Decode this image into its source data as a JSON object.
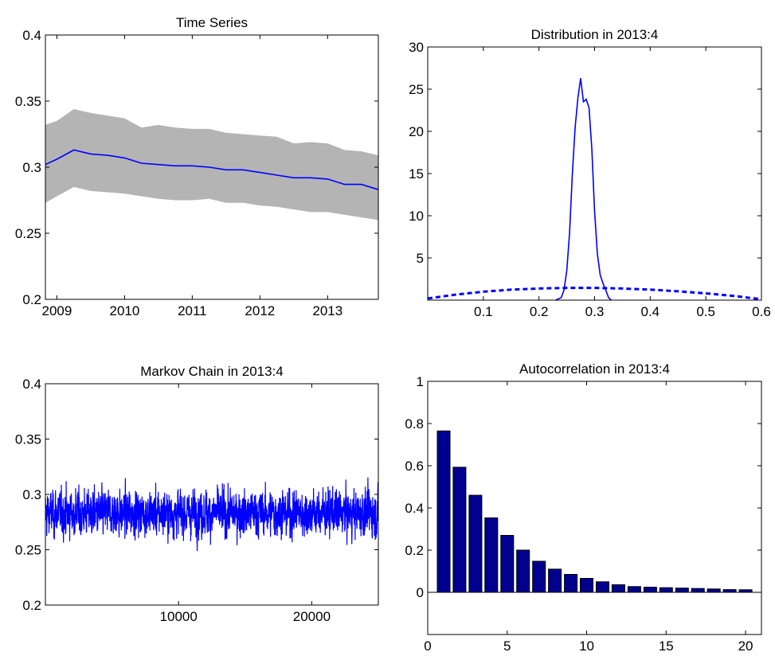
{
  "chart_data": [
    {
      "type": "area",
      "title": "Time Series",
      "xlabel": "",
      "ylabel": "",
      "xlim": [
        2008.83,
        2013.75
      ],
      "ylim": [
        0.2,
        0.4
      ],
      "xticks": [
        2009,
        2010,
        2011,
        2012,
        2013
      ],
      "yticks": [
        0.2,
        0.25,
        0.3,
        0.35,
        0.4
      ],
      "xtick_labels": [
        "2009",
        "2010",
        "2011",
        "2012",
        "2013"
      ],
      "ytick_labels": [
        "0.2",
        "0.25",
        "0.3",
        "0.35",
        "0.4"
      ],
      "x": [
        2008.83,
        2009.0,
        2009.25,
        2009.5,
        2009.75,
        2010.0,
        2010.25,
        2010.5,
        2010.75,
        2011.0,
        2011.25,
        2011.5,
        2011.75,
        2012.0,
        2012.25,
        2012.5,
        2012.75,
        2013.0,
        2013.25,
        2013.5,
        2013.75
      ],
      "series": [
        {
          "values": [
            0.302,
            0.306,
            0.313,
            0.31,
            0.309,
            0.307,
            0.303,
            0.302,
            0.301,
            0.301,
            0.3,
            0.298,
            0.298,
            0.296,
            0.294,
            0.292,
            0.292,
            0.291,
            0.287,
            0.287,
            0.283
          ],
          "color": "#0000ff"
        }
      ],
      "band": {
        "lower": [
          0.273,
          0.278,
          0.285,
          0.282,
          0.281,
          0.28,
          0.278,
          0.276,
          0.275,
          0.275,
          0.276,
          0.273,
          0.273,
          0.271,
          0.27,
          0.268,
          0.266,
          0.266,
          0.264,
          0.262,
          0.26
        ],
        "upper": [
          0.332,
          0.335,
          0.344,
          0.341,
          0.339,
          0.337,
          0.33,
          0.332,
          0.33,
          0.329,
          0.329,
          0.326,
          0.325,
          0.324,
          0.323,
          0.318,
          0.319,
          0.318,
          0.313,
          0.312,
          0.309
        ],
        "color": "#b4b4b4"
      },
      "grid": false
    },
    {
      "type": "line",
      "title": "Distribution in 2013:4",
      "xlabel": "",
      "ylabel": "",
      "xlim": [
        0.0,
        0.6
      ],
      "ylim": [
        0,
        30
      ],
      "xticks": [
        0.1,
        0.2,
        0.3,
        0.4,
        0.5,
        0.6
      ],
      "yticks": [
        5,
        10,
        15,
        20,
        25,
        30
      ],
      "xtick_labels": [
        "0.1",
        "0.2",
        "0.3",
        "0.4",
        "0.5",
        "0.6"
      ],
      "ytick_labels": [
        "5",
        "10",
        "15",
        "20",
        "25",
        "30"
      ],
      "series": [
        {
          "style": "solid",
          "color": "#0000ff",
          "x": [
            0.23,
            0.24,
            0.245,
            0.25,
            0.255,
            0.26,
            0.265,
            0.27,
            0.275,
            0.28,
            0.285,
            0.29,
            0.295,
            0.3,
            0.305,
            0.31,
            0.315,
            0.32,
            0.325,
            0.33
          ],
          "y": [
            0.0,
            0.3,
            1.2,
            3.5,
            8.0,
            15.0,
            20.5,
            24.0,
            26.3,
            23.5,
            23.8,
            22.8,
            18.0,
            10.5,
            5.5,
            3.0,
            2.0,
            1.2,
            0.3,
            0.0
          ]
        },
        {
          "style": "dashed",
          "color": "#0000ff",
          "x": [
            0.0,
            0.05,
            0.1,
            0.15,
            0.2,
            0.25,
            0.3,
            0.35,
            0.4,
            0.45,
            0.5,
            0.55,
            0.6
          ],
          "y": [
            0.2,
            0.65,
            1.0,
            1.25,
            1.38,
            1.45,
            1.45,
            1.38,
            1.25,
            1.05,
            0.8,
            0.5,
            0.1
          ]
        }
      ],
      "grid": false
    },
    {
      "type": "line",
      "title": "Markov Chain in 2013:4",
      "xlabel": "",
      "ylabel": "",
      "xlim": [
        0,
        25000
      ],
      "ylim": [
        0.2,
        0.4
      ],
      "xticks": [
        10000,
        20000
      ],
      "yticks": [
        0.2,
        0.25,
        0.3,
        0.35,
        0.4
      ],
      "xtick_labels": [
        "10000",
        "20000"
      ],
      "ytick_labels": [
        "0.2",
        "0.25",
        "0.3",
        "0.35",
        "0.4"
      ],
      "series": [
        {
          "n_draws": 25000,
          "mean": 0.283,
          "min": 0.23,
          "max": 0.343,
          "color": "#0000ff"
        }
      ],
      "grid": false
    },
    {
      "type": "bar",
      "title": "Autocorrelation in 2013:4",
      "xlabel": "",
      "ylabel": "",
      "xlim": [
        0,
        21
      ],
      "ylim": [
        -0.2,
        1
      ],
      "xticks": [
        0,
        5,
        10,
        15,
        20
      ],
      "yticks": [
        0,
        0.2,
        0.4,
        0.6,
        0.8,
        1
      ],
      "xtick_labels": [
        "0",
        "5",
        "10",
        "15",
        "20"
      ],
      "ytick_labels": [
        "0",
        "0.2",
        "0.4",
        "0.6",
        "0.8",
        "1"
      ],
      "categories": [
        1,
        2,
        3,
        4,
        5,
        6,
        7,
        8,
        9,
        10,
        11,
        12,
        13,
        14,
        15,
        16,
        17,
        18,
        19,
        20
      ],
      "values": [
        0.765,
        0.593,
        0.46,
        0.353,
        0.27,
        0.2,
        0.147,
        0.11,
        0.085,
        0.066,
        0.05,
        0.036,
        0.027,
        0.024,
        0.022,
        0.02,
        0.018,
        0.016,
        0.013,
        0.012
      ],
      "bar_color": "#00008f",
      "grid": false
    }
  ]
}
